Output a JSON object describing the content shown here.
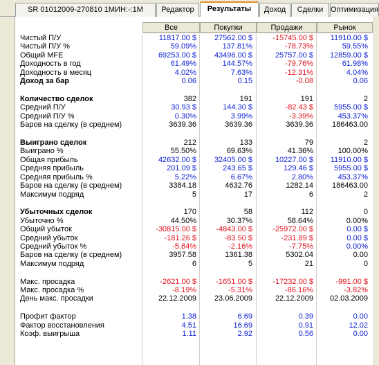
{
  "tabs": [
    {
      "label": "SR 01012009-270810 1МИН:-:1M",
      "active": false
    },
    {
      "label": "Редактор",
      "active": false
    },
    {
      "label": "Результаты",
      "active": true
    },
    {
      "label": "Доход",
      "active": false
    },
    {
      "label": "Сделки",
      "active": false
    },
    {
      "label": "Оптимизация",
      "active": false
    }
  ],
  "columns": [
    "Все",
    "Покупки",
    "Продажи",
    "Рынок"
  ],
  "rows": [
    {
      "label": "Чистый П/У",
      "bold": false,
      "values": [
        {
          "text": "11817.00 $",
          "color": "blue"
        },
        {
          "text": "27562.00 $",
          "color": "blue"
        },
        {
          "text": "-15745.00 $",
          "color": "red"
        },
        {
          "text": "11910.00 $",
          "color": "blue"
        }
      ]
    },
    {
      "label": "Чистый П/У %",
      "bold": false,
      "values": [
        {
          "text": "59.09%",
          "color": "blue"
        },
        {
          "text": "137.81%",
          "color": "blue"
        },
        {
          "text": "-78.73%",
          "color": "red"
        },
        {
          "text": "59.55%",
          "color": "blue"
        }
      ]
    },
    {
      "label": "Общий MFE",
      "bold": false,
      "values": [
        {
          "text": "69253.00 $",
          "color": "blue"
        },
        {
          "text": "43496.00 $",
          "color": "blue"
        },
        {
          "text": "25757.00 $",
          "color": "blue"
        },
        {
          "text": "12859.00 $",
          "color": "blue"
        }
      ]
    },
    {
      "label": "Доходность в год",
      "bold": false,
      "values": [
        {
          "text": "61.49%",
          "color": "blue"
        },
        {
          "text": "144.57%",
          "color": "blue"
        },
        {
          "text": "-79.76%",
          "color": "red"
        },
        {
          "text": "61.98%",
          "color": "blue"
        }
      ]
    },
    {
      "label": "Доходность в месяц",
      "bold": false,
      "values": [
        {
          "text": "4.02%",
          "color": "blue"
        },
        {
          "text": "7.63%",
          "color": "blue"
        },
        {
          "text": "-12.31%",
          "color": "red"
        },
        {
          "text": "4.04%",
          "color": "blue"
        }
      ]
    },
    {
      "label": "Доход за бар",
      "bold": true,
      "values": [
        {
          "text": "0.06",
          "color": "blue"
        },
        {
          "text": "0.15",
          "color": "blue"
        },
        {
          "text": "-0.08",
          "color": "red"
        },
        {
          "text": "0.06",
          "color": "blue"
        }
      ]
    },
    {
      "spacer": true
    },
    {
      "label": "Количество сделок",
      "bold": true,
      "values": [
        {
          "text": "382",
          "color": "black"
        },
        {
          "text": "191",
          "color": "black"
        },
        {
          "text": "191",
          "color": "black"
        },
        {
          "text": "2",
          "color": "black"
        }
      ]
    },
    {
      "label": "Средний П/У",
      "bold": false,
      "values": [
        {
          "text": "30.93 $",
          "color": "blue"
        },
        {
          "text": "144.30 $",
          "color": "blue"
        },
        {
          "text": "-82.43 $",
          "color": "red"
        },
        {
          "text": "5955.00 $",
          "color": "blue"
        }
      ]
    },
    {
      "label": "Средний П/У %",
      "bold": false,
      "values": [
        {
          "text": "0.30%",
          "color": "blue"
        },
        {
          "text": "3.99%",
          "color": "blue"
        },
        {
          "text": "-3.39%",
          "color": "red"
        },
        {
          "text": "453.37%",
          "color": "blue"
        }
      ]
    },
    {
      "label": "Баров на сделку (в среднем)",
      "bold": false,
      "values": [
        {
          "text": "3639.36",
          "color": "black"
        },
        {
          "text": "3639.36",
          "color": "black"
        },
        {
          "text": "3639.36",
          "color": "black"
        },
        {
          "text": "186463.00",
          "color": "black"
        }
      ]
    },
    {
      "spacer": true
    },
    {
      "label": "Выиграно сделок",
      "bold": true,
      "values": [
        {
          "text": "212",
          "color": "black"
        },
        {
          "text": "133",
          "color": "black"
        },
        {
          "text": "79",
          "color": "black"
        },
        {
          "text": "2",
          "color": "black"
        }
      ]
    },
    {
      "label": "Выиграно %",
      "bold": false,
      "values": [
        {
          "text": "55.50%",
          "color": "black"
        },
        {
          "text": "69.63%",
          "color": "black"
        },
        {
          "text": "41.36%",
          "color": "black"
        },
        {
          "text": "100.00%",
          "color": "black"
        }
      ]
    },
    {
      "label": "Общая прибыль",
      "bold": false,
      "values": [
        {
          "text": "42632.00 $",
          "color": "blue"
        },
        {
          "text": "32405.00 $",
          "color": "blue"
        },
        {
          "text": "10227.00 $",
          "color": "blue"
        },
        {
          "text": "11910.00 $",
          "color": "blue"
        }
      ]
    },
    {
      "label": "Средняя прибыль",
      "bold": false,
      "values": [
        {
          "text": "201.09 $",
          "color": "blue"
        },
        {
          "text": "243.65 $",
          "color": "blue"
        },
        {
          "text": "129.46 $",
          "color": "blue"
        },
        {
          "text": "5955.00 $",
          "color": "blue"
        }
      ]
    },
    {
      "label": "Средняя прибыль %",
      "bold": false,
      "values": [
        {
          "text": "5.22%",
          "color": "blue"
        },
        {
          "text": "6.67%",
          "color": "blue"
        },
        {
          "text": "2.80%",
          "color": "blue"
        },
        {
          "text": "453.37%",
          "color": "blue"
        }
      ]
    },
    {
      "label": "Баров на сделку (в среднем)",
      "bold": false,
      "values": [
        {
          "text": "3384.18",
          "color": "black"
        },
        {
          "text": "4632.76",
          "color": "black"
        },
        {
          "text": "1282.14",
          "color": "black"
        },
        {
          "text": "186463.00",
          "color": "black"
        }
      ]
    },
    {
      "label": "Максимум подряд",
      "bold": false,
      "values": [
        {
          "text": "5",
          "color": "black"
        },
        {
          "text": "17",
          "color": "black"
        },
        {
          "text": "6",
          "color": "black"
        },
        {
          "text": "2",
          "color": "black"
        }
      ]
    },
    {
      "spacer": true
    },
    {
      "label": "Убыточных сделок",
      "bold": true,
      "values": [
        {
          "text": "170",
          "color": "black"
        },
        {
          "text": "58",
          "color": "black"
        },
        {
          "text": "112",
          "color": "black"
        },
        {
          "text": "0",
          "color": "black"
        }
      ]
    },
    {
      "label": "Убыточно %",
      "bold": false,
      "values": [
        {
          "text": "44.50%",
          "color": "black"
        },
        {
          "text": "30.37%",
          "color": "black"
        },
        {
          "text": "58.64%",
          "color": "black"
        },
        {
          "text": "0.00%",
          "color": "black"
        }
      ]
    },
    {
      "label": "Общий убыток",
      "bold": false,
      "values": [
        {
          "text": "-30815.00 $",
          "color": "red"
        },
        {
          "text": "-4843.00 $",
          "color": "red"
        },
        {
          "text": "-25972.00 $",
          "color": "red"
        },
        {
          "text": "0.00 $",
          "color": "blue"
        }
      ]
    },
    {
      "label": "Средний убыток",
      "bold": false,
      "values": [
        {
          "text": "-181.26 $",
          "color": "red"
        },
        {
          "text": "-83.50 $",
          "color": "red"
        },
        {
          "text": "-231.89 $",
          "color": "red"
        },
        {
          "text": "0.00 $",
          "color": "blue"
        }
      ]
    },
    {
      "label": "Средний убыток %",
      "bold": false,
      "values": [
        {
          "text": "-5.84%",
          "color": "red"
        },
        {
          "text": "-2.16%",
          "color": "red"
        },
        {
          "text": "-7.75%",
          "color": "red"
        },
        {
          "text": "0.00%",
          "color": "blue"
        }
      ]
    },
    {
      "label": "Баров на сделку (в среднем)",
      "bold": false,
      "values": [
        {
          "text": "3957.58",
          "color": "black"
        },
        {
          "text": "1361.38",
          "color": "black"
        },
        {
          "text": "5302.04",
          "color": "black"
        },
        {
          "text": "0.00",
          "color": "black"
        }
      ]
    },
    {
      "label": "Максимум подряд",
      "bold": false,
      "values": [
        {
          "text": "6",
          "color": "black"
        },
        {
          "text": "5",
          "color": "black"
        },
        {
          "text": "21",
          "color": "black"
        },
        {
          "text": "0",
          "color": "black"
        }
      ]
    },
    {
      "spacer": true
    },
    {
      "label": "Макс. просадка",
      "bold": false,
      "values": [
        {
          "text": "-2621.00 $",
          "color": "red"
        },
        {
          "text": "-1651.00 $",
          "color": "red"
        },
        {
          "text": "-17232.00 $",
          "color": "red"
        },
        {
          "text": "-991.00 $",
          "color": "red"
        }
      ]
    },
    {
      "label": "Макс. просадка %",
      "bold": false,
      "values": [
        {
          "text": "-8.19%",
          "color": "red"
        },
        {
          "text": "-5.31%",
          "color": "red"
        },
        {
          "text": "-86.16%",
          "color": "red"
        },
        {
          "text": "-3.82%",
          "color": "red"
        }
      ]
    },
    {
      "label": "День макс. просадки",
      "bold": false,
      "values": [
        {
          "text": "22.12.2009",
          "color": "black"
        },
        {
          "text": "23.06.2009",
          "color": "black"
        },
        {
          "text": "22.12.2009",
          "color": "black"
        },
        {
          "text": "02.03.2009",
          "color": "black"
        }
      ]
    },
    {
      "spacer": true
    },
    {
      "label": "Профит фактор",
      "bold": false,
      "values": [
        {
          "text": "1.38",
          "color": "blue"
        },
        {
          "text": "6.69",
          "color": "blue"
        },
        {
          "text": "0.39",
          "color": "blue"
        },
        {
          "text": "0.00",
          "color": "blue"
        }
      ]
    },
    {
      "label": "Фактор восстановления",
      "bold": false,
      "values": [
        {
          "text": "4.51",
          "color": "blue"
        },
        {
          "text": "16.69",
          "color": "blue"
        },
        {
          "text": "0.91",
          "color": "blue"
        },
        {
          "text": "12.02",
          "color": "blue"
        }
      ]
    },
    {
      "label": "Коэф. выигрыша",
      "bold": false,
      "values": [
        {
          "text": "1.11",
          "color": "blue"
        },
        {
          "text": "2.92",
          "color": "blue"
        },
        {
          "text": "0.56",
          "color": "blue"
        },
        {
          "text": "0.00",
          "color": "blue"
        }
      ]
    }
  ]
}
